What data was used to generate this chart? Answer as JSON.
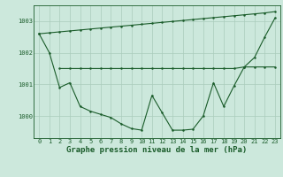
{
  "background_color": "#cce8dc",
  "grid_color": "#aaccbb",
  "line_color": "#1a5c2a",
  "title": "Graphe pression niveau de la mer (hPa)",
  "xlim": [
    -0.5,
    23.5
  ],
  "ylim": [
    999.3,
    1003.5
  ],
  "yticks": [
    1000,
    1001,
    1002,
    1003
  ],
  "xticks": [
    0,
    1,
    2,
    3,
    4,
    5,
    6,
    7,
    8,
    9,
    10,
    11,
    12,
    13,
    14,
    15,
    16,
    17,
    18,
    19,
    20,
    21,
    22,
    23
  ],
  "series_diagonal": {
    "x": [
      0,
      1,
      2,
      3,
      4,
      5,
      6,
      7,
      8,
      9,
      10,
      11,
      12,
      13,
      14,
      15,
      16,
      17,
      18,
      19,
      20,
      21,
      22,
      23
    ],
    "y": [
      1002.6,
      1002.63,
      1002.66,
      1002.69,
      1002.72,
      1002.75,
      1002.78,
      1002.81,
      1002.84,
      1002.87,
      1002.9,
      1002.93,
      1002.96,
      1002.99,
      1003.02,
      1003.05,
      1003.08,
      1003.11,
      1003.14,
      1003.17,
      1003.2,
      1003.23,
      1003.26,
      1003.3
    ]
  },
  "series_flat": {
    "x": [
      2,
      3,
      4,
      5,
      6,
      7,
      8,
      9,
      10,
      11,
      12,
      13,
      14,
      15,
      16,
      17,
      18,
      19,
      20,
      21,
      22,
      23
    ],
    "y": [
      1001.5,
      1001.5,
      1001.5,
      1001.5,
      1001.5,
      1001.5,
      1001.5,
      1001.5,
      1001.5,
      1001.5,
      1001.5,
      1001.5,
      1001.5,
      1001.5,
      1001.5,
      1001.5,
      1001.5,
      1001.5,
      1001.55,
      1001.55,
      1001.55,
      1001.55
    ]
  },
  "series_zigzag": {
    "x": [
      0,
      1,
      2,
      3,
      4,
      5,
      6,
      7,
      8,
      9,
      10,
      11,
      12,
      13,
      14,
      15,
      16,
      17,
      18,
      19,
      20,
      21,
      22,
      23
    ],
    "y": [
      1002.6,
      1002.0,
      1000.9,
      1001.05,
      1000.3,
      1000.15,
      1000.05,
      999.95,
      999.75,
      999.6,
      999.55,
      1000.65,
      1000.1,
      999.55,
      999.55,
      999.58,
      1000.0,
      1001.05,
      1000.3,
      1000.95,
      1001.55,
      1001.85,
      1002.5,
      1003.1
    ]
  },
  "line_width": 0.8,
  "marker_size": 1.8,
  "title_fontsize": 6.5,
  "tick_fontsize": 5.0
}
